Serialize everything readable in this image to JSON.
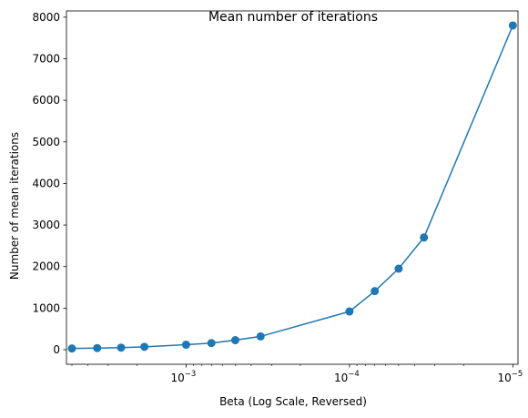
{
  "chart_data": {
    "type": "line",
    "title": "Mean number of iterations",
    "xlabel": "Beta (Log Scale, Reversed)",
    "ylabel": "Number of mean iterations",
    "x_scale": "log",
    "x_reversed": true,
    "xlim": [
      0.0054,
      9.3e-06
    ],
    "ylim": [
      -350,
      8150
    ],
    "grid": false,
    "x_ticks": [
      {
        "value": 0.001,
        "base": "10",
        "exp": "−3"
      },
      {
        "value": 0.0001,
        "base": "10",
        "exp": "−4"
      },
      {
        "value": 1e-05,
        "base": "10",
        "exp": "−5"
      }
    ],
    "y_ticks": [
      0,
      1000,
      2000,
      3000,
      4000,
      5000,
      6000,
      7000,
      8000
    ],
    "series": [
      {
        "color": "#1f77b4",
        "marker": "circle",
        "x": [
          0.005,
          0.0035,
          0.0025,
          0.0018,
          0.001,
          0.0007,
          0.0005,
          0.00035,
          0.0001,
          7e-05,
          5e-05,
          3.5e-05,
          1e-05
        ],
        "y": [
          30,
          40,
          50,
          70,
          120,
          160,
          230,
          320,
          920,
          1410,
          1950,
          2700,
          7800
        ]
      }
    ]
  }
}
